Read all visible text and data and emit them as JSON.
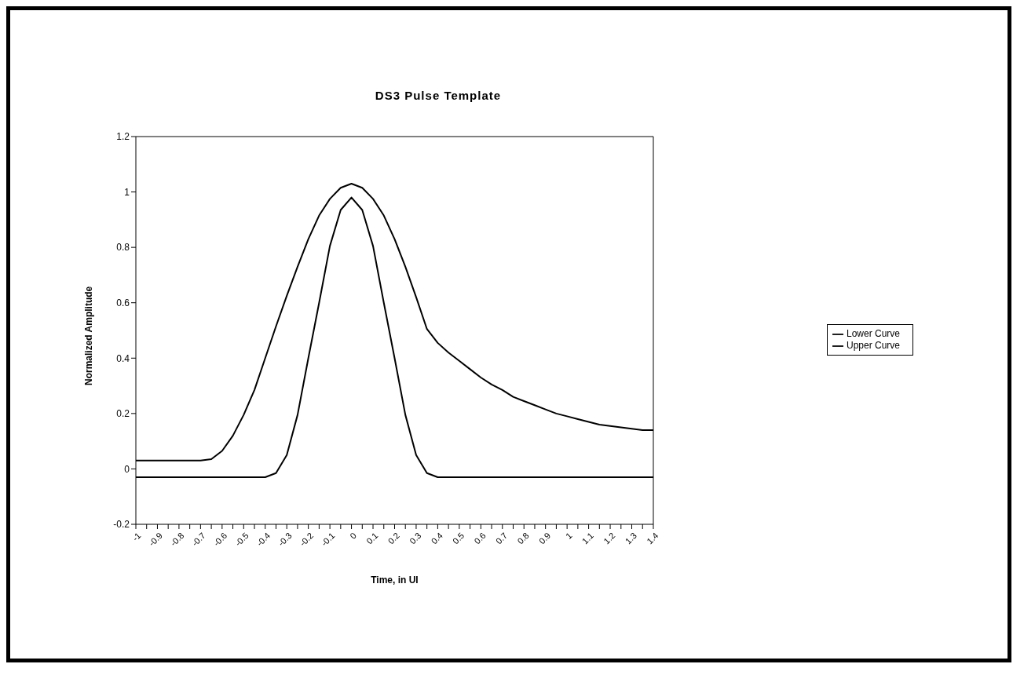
{
  "chart_data": {
    "type": "line",
    "title": "DS3 Pulse Template",
    "xlabel": "Time, in UI",
    "ylabel": "Normalized Amplitude",
    "x": [
      -1,
      -0.95,
      -0.9,
      -0.85,
      -0.8,
      -0.75,
      -0.7,
      -0.65,
      -0.6,
      -0.55,
      -0.5,
      -0.45,
      -0.4,
      -0.35,
      -0.3,
      -0.25,
      -0.2,
      -0.15,
      -0.1,
      -0.05,
      0,
      0.05,
      0.1,
      0.15,
      0.2,
      0.25,
      0.3,
      0.35,
      0.4,
      0.45,
      0.5,
      0.55,
      0.6,
      0.65,
      0.7,
      0.75,
      0.8,
      0.85,
      0.9,
      0.95,
      1,
      1.05,
      1.1,
      1.15,
      1.2,
      1.25,
      1.3,
      1.35,
      1.4
    ],
    "series": [
      {
        "name": "Lower Curve",
        "color": "#000000",
        "values": [
          -0.03,
          -0.03,
          -0.03,
          -0.03,
          -0.03,
          -0.03,
          -0.03,
          -0.03,
          -0.03,
          -0.03,
          -0.03,
          -0.03,
          -0.03,
          -0.015,
          0.05,
          0.195,
          0.4,
          0.6,
          0.805,
          0.935,
          0.98,
          0.935,
          0.805,
          0.6,
          0.4,
          0.195,
          0.05,
          -0.015,
          -0.03,
          -0.03,
          -0.03,
          -0.03,
          -0.03,
          -0.03,
          -0.03,
          -0.03,
          -0.03,
          -0.03,
          -0.03,
          -0.03,
          -0.03,
          -0.03,
          -0.03,
          -0.03,
          -0.03,
          -0.03,
          -0.03,
          -0.03,
          -0.03
        ]
      },
      {
        "name": "Upper Curve",
        "color": "#000000",
        "values": [
          0.03,
          0.03,
          0.03,
          0.03,
          0.03,
          0.03,
          0.03,
          0.035,
          0.065,
          0.12,
          0.195,
          0.285,
          0.4,
          0.515,
          0.625,
          0.73,
          0.83,
          0.915,
          0.975,
          1.015,
          1.03,
          1.015,
          0.975,
          0.915,
          0.83,
          0.73,
          0.62,
          0.505,
          0.455,
          0.42,
          0.39,
          0.36,
          0.33,
          0.305,
          0.285,
          0.26,
          0.245,
          0.23,
          0.215,
          0.2,
          0.19,
          0.18,
          0.17,
          0.16,
          0.155,
          0.15,
          0.145,
          0.14,
          0.14
        ]
      }
    ],
    "xlim": [
      -1,
      1.4
    ],
    "xticks": [
      -1,
      {
        "value": -0.95,
        "label": null
      },
      -0.9,
      {
        "value": -0.85,
        "label": null
      },
      -0.8,
      {
        "value": -0.75,
        "label": null
      },
      -0.7,
      {
        "value": -0.65,
        "label": null
      },
      -0.6,
      {
        "value": -0.55,
        "label": null
      },
      -0.5,
      {
        "value": -0.45,
        "label": null
      },
      -0.4,
      {
        "value": -0.35,
        "label": null
      },
      -0.3,
      {
        "value": -0.25,
        "label": null
      },
      -0.2,
      {
        "value": -0.15,
        "label": null
      },
      -0.1,
      {
        "value": -0.05,
        "label": null
      },
      0,
      {
        "value": 0.05,
        "label": null
      },
      0.1,
      {
        "value": 0.15,
        "label": null
      },
      0.2,
      {
        "value": 0.25,
        "label": null
      },
      0.3,
      {
        "value": 0.35,
        "label": null
      },
      0.4,
      {
        "value": 0.45,
        "label": null
      },
      0.5,
      {
        "value": 0.55,
        "label": null
      },
      0.6,
      {
        "value": 0.65,
        "label": null
      },
      0.7,
      {
        "value": 0.75,
        "label": null
      },
      0.8,
      {
        "value": 0.85,
        "label": null
      },
      0.9,
      {
        "value": 0.95,
        "label": null
      },
      1,
      {
        "value": 1.05,
        "label": null
      },
      1.1,
      {
        "value": 1.15,
        "label": null
      },
      1.2,
      {
        "value": 1.25,
        "label": null
      },
      1.3,
      {
        "value": 1.35,
        "label": null
      },
      1.4
    ],
    "ylim": [
      -0.2,
      1.2
    ],
    "yticks": [
      -0.2,
      0,
      0.2,
      0.4,
      0.6,
      0.8,
      1,
      1.2
    ],
    "grid": false,
    "legend": "right",
    "marker": "none",
    "line_style": "solid"
  }
}
